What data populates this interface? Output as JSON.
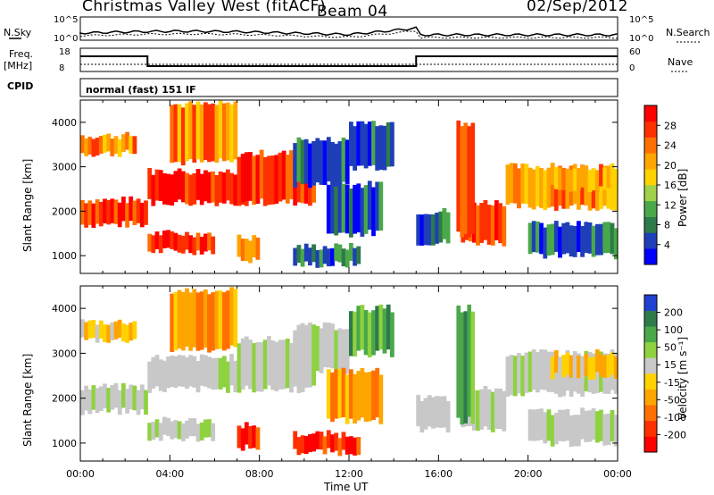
{
  "header": {
    "site": "Christmas Valley West (fitACF)",
    "beam": "Beam 04",
    "date": "02/Sep/2012"
  },
  "top_panels": {
    "nsky_label": "N.Sky",
    "nsky_ticks": [
      "10^5",
      "10^0"
    ],
    "nsearch_label": "N.Search",
    "freq_label_1": "Freq.",
    "freq_label_2": "[MHz]",
    "freq_ticks": [
      "18",
      "8"
    ],
    "nave_ticks": [
      "60",
      "0"
    ],
    "nave_label": "Nave",
    "cpid_label": "CPID",
    "cpid_value": "normal (fast) 151 IF"
  },
  "colors": {
    "power_scale": [
      "#0000ff",
      "#1f3fb8",
      "#2e7a4a",
      "#4aa84a",
      "#9fd24a",
      "#ffd200",
      "#ffa500",
      "#ff7000",
      "#ff3000",
      "#ff0000"
    ],
    "velocity_scale": [
      "#2040d0",
      "#2e7a4a",
      "#4aa84a",
      "#8ed240",
      "#c8c8c8",
      "#ffd200",
      "#ffa500",
      "#ff7000",
      "#ff3000",
      "#ff0000"
    ]
  },
  "chart_data": [
    {
      "type": "heatmap",
      "name": "power",
      "ylabel": "Slant Range [km]",
      "yticks": [
        "4000",
        "3000",
        "2000",
        "1000"
      ],
      "ylim": [
        600,
        4500
      ],
      "colorbar_label": "Power [dB]",
      "colorbar_ticks": [
        "28",
        "24",
        "20",
        "16",
        "12",
        "8",
        "4"
      ],
      "colorbar_range": [
        0,
        32
      ]
    },
    {
      "type": "heatmap",
      "name": "velocity",
      "ylabel": "Slant Range [km]",
      "yticks": [
        "4000",
        "3000",
        "2000",
        "1000"
      ],
      "ylim": [
        600,
        4500
      ],
      "colorbar_label": "Velocity [m s⁻¹]",
      "colorbar_ticks": [
        "200",
        "100",
        "50",
        "15",
        "-15",
        "-50",
        "-100",
        "-200"
      ]
    }
  ],
  "xaxis": {
    "label": "Time UT",
    "ticks": [
      "00:00",
      "04:00",
      "08:00",
      "12:00",
      "16:00",
      "20:00",
      "00:00"
    ],
    "xlim": [
      0,
      24
    ]
  },
  "echo_bands": [
    {
      "t0": 0.0,
      "t1": 3.0,
      "r0": 1700,
      "r1": 2250,
      "p": "high",
      "v": "zero"
    },
    {
      "t0": 0.0,
      "t1": 2.5,
      "r0": 3300,
      "r1": 3700,
      "p": "mid",
      "v": "neg"
    },
    {
      "t0": 3.0,
      "t1": 6.0,
      "r0": 1100,
      "r1": 1500,
      "p": "high",
      "v": "zero"
    },
    {
      "t0": 3.0,
      "t1": 7.5,
      "r0": 2200,
      "r1": 2900,
      "p": "high",
      "v": "zero"
    },
    {
      "t0": 4.0,
      "t1": 7.0,
      "r0": 3100,
      "r1": 4400,
      "p": "mid",
      "v": "negstrong"
    },
    {
      "t0": 7.0,
      "t1": 10.5,
      "r0": 2200,
      "r1": 3300,
      "p": "high",
      "v": "zero"
    },
    {
      "t0": 7.0,
      "t1": 8.0,
      "r0": 900,
      "r1": 1400,
      "p": "mid",
      "v": "negmax"
    },
    {
      "t0": 9.5,
      "t1": 12.5,
      "r0": 800,
      "r1": 1200,
      "p": "low",
      "v": "negmax"
    },
    {
      "t0": 9.5,
      "t1": 12.0,
      "r0": 2600,
      "r1": 3600,
      "p": "low",
      "v": "zero"
    },
    {
      "t0": 11.0,
      "t1": 13.5,
      "r0": 1500,
      "r1": 2600,
      "p": "low",
      "v": "negstrong"
    },
    {
      "t0": 12.0,
      "t1": 14.0,
      "r0": 3000,
      "r1": 4000,
      "p": "low",
      "v": "pos"
    },
    {
      "t0": 15.0,
      "t1": 16.5,
      "r0": 1300,
      "r1": 2000,
      "p": "low",
      "v": "zero"
    },
    {
      "t0": 17.0,
      "t1": 19.0,
      "r0": 1300,
      "r1": 2200,
      "p": "high",
      "v": "zero"
    },
    {
      "t0": 16.8,
      "t1": 17.6,
      "r0": 1500,
      "r1": 4000,
      "p": "high",
      "v": "pos"
    },
    {
      "t0": 19.0,
      "t1": 24.0,
      "r0": 2100,
      "r1": 3000,
      "p": "mid",
      "v": "zero"
    },
    {
      "t0": 20.0,
      "t1": 24.0,
      "r0": 1000,
      "r1": 1700,
      "p": "low",
      "v": "zero"
    },
    {
      "t0": 21.0,
      "t1": 24.0,
      "r0": 2500,
      "r1": 3000,
      "p": "mid",
      "v": "neg"
    }
  ]
}
